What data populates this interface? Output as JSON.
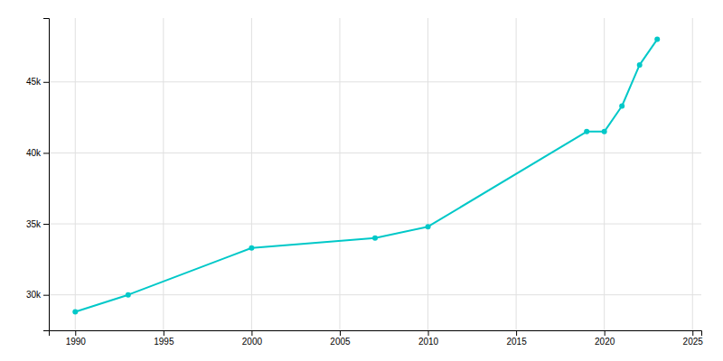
{
  "chart_data": {
    "type": "line",
    "x": [
      1990,
      1993,
      2000,
      2007,
      2010,
      2019,
      2020,
      2021,
      2022,
      2023
    ],
    "values": [
      28800,
      30000,
      33300,
      34000,
      34800,
      41500,
      41500,
      43300,
      46200,
      48000
    ],
    "color": "#00c8c8",
    "marker": "circle",
    "xlim": [
      1988.5,
      2025.5
    ],
    "xticks": [
      1990,
      1995,
      2000,
      2005,
      2010,
      2015,
      2020,
      2025
    ],
    "ylim": [
      27500,
      49500
    ],
    "yticks": [
      {
        "value": 30000,
        "label": "30k"
      },
      {
        "value": 35000,
        "label": "35k"
      },
      {
        "value": 40000,
        "label": "40k"
      },
      {
        "value": 45000,
        "label": "45k"
      }
    ],
    "grid": true
  }
}
